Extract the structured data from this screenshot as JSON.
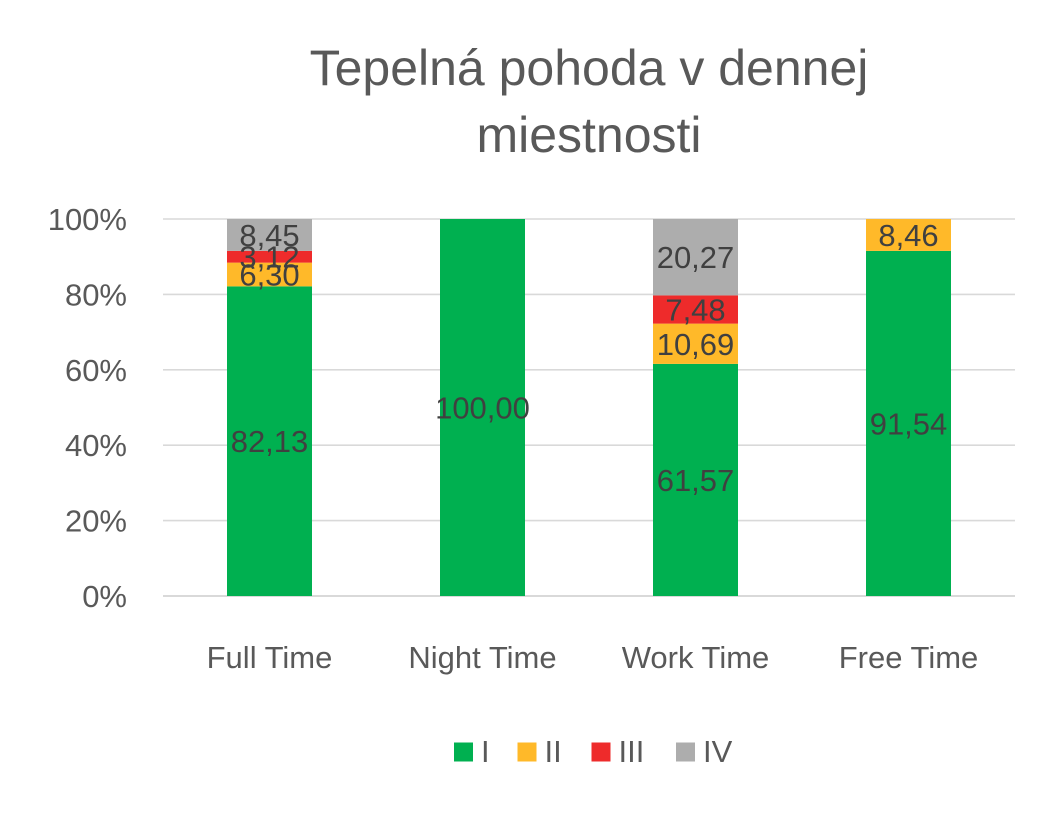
{
  "chart_data": {
    "type": "bar",
    "stacking": "percent",
    "title": "Tepelná pohoda v dennej miestnosti",
    "title_lines": [
      "Tepelná pohoda v dennej",
      "miestnosti"
    ],
    "categories": [
      "Full Time",
      "Night Time",
      "Work Time",
      "Free Time"
    ],
    "series": [
      {
        "name": "I",
        "color": "#00B050",
        "values": [
          82.13,
          100.0,
          61.57,
          91.54
        ],
        "labels": [
          "82,13",
          "100,00",
          "61,57",
          "91,54"
        ]
      },
      {
        "name": "II",
        "color": "#FFB929",
        "values": [
          6.3,
          0,
          10.69,
          8.46
        ],
        "labels": [
          "6,30",
          "",
          "10,69",
          "8,46"
        ]
      },
      {
        "name": "III",
        "color": "#EE2B2B",
        "values": [
          3.12,
          0,
          7.48,
          0
        ],
        "labels": [
          "3,12",
          "",
          "7,48",
          ""
        ]
      },
      {
        "name": "IV",
        "color": "#ADADAD",
        "values": [
          8.45,
          0,
          20.27,
          0
        ],
        "labels": [
          "8,45",
          "",
          "20,27",
          ""
        ]
      }
    ],
    "y_ticks": [
      "0%",
      "20%",
      "40%",
      "60%",
      "80%",
      "100%"
    ],
    "ylim": [
      0,
      100
    ],
    "grid": true,
    "legend_position": "bottom",
    "xlabel": "",
    "ylabel": ""
  }
}
